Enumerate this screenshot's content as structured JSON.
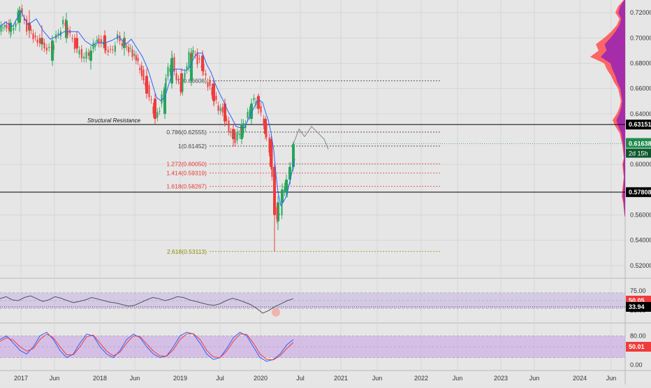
{
  "chart_data": {
    "type": "candlestick",
    "x_labels": [
      "2017",
      "Jun",
      "2018",
      "Jun",
      "2019",
      "Jul",
      "2020",
      "Jul",
      "2021",
      "Jun",
      "2022",
      "Jun",
      "2023",
      "Jun",
      "2024",
      "Jun"
    ],
    "price_axis": {
      "ticks": [
        "0.72000",
        "0.70000",
        "0.68000",
        "0.66000",
        "0.64000",
        "0.60000",
        "0.56000",
        "0.54000",
        "0.52000"
      ],
      "range": [
        0.51,
        0.73
      ]
    },
    "last_price": {
      "value": "0.61638",
      "countdown": "2d 15h",
      "color": "#1e8a4c"
    },
    "levels": [
      {
        "value": "0.63151",
        "label": "Structural Resistance",
        "color": "#000000"
      },
      {
        "value": "0.57808",
        "label": "",
        "color": "#000000"
      }
    ],
    "fib_levels": [
      {
        "label": "0(0.66606)",
        "value": 0.66606,
        "color": "#444444"
      },
      {
        "label": "0.786(0.62555)",
        "value": 0.62555,
        "color": "#444444"
      },
      {
        "label": "1(0.61452)",
        "value": 0.61452,
        "color": "#444444"
      },
      {
        "label": "1.272(0.60050)",
        "value": 0.6005,
        "color": "#e53935"
      },
      {
        "label": "1.414(0.59319)",
        "value": 0.59319,
        "color": "#e53935"
      },
      {
        "label": "1.618(0.58267)",
        "value": 0.58267,
        "color": "#e53935"
      },
      {
        "label": "2.618(0.53113)",
        "value": 0.53113,
        "color": "#8b8b00"
      }
    ],
    "ma_color": "#2962ff",
    "up_color": "#26a65b",
    "down_color": "#ef3b3b",
    "price_path": [
      [
        0,
        0.705
      ],
      [
        8,
        0.712
      ],
      [
        18,
        0.705
      ],
      [
        30,
        0.722
      ],
      [
        40,
        0.708
      ],
      [
        52,
        0.7
      ],
      [
        62,
        0.695
      ],
      [
        72,
        0.69
      ],
      [
        82,
        0.7
      ],
      [
        92,
        0.712
      ],
      [
        102,
        0.702
      ],
      [
        112,
        0.69
      ],
      [
        122,
        0.685
      ],
      [
        132,
        0.69
      ],
      [
        140,
        0.7
      ],
      [
        150,
        0.694
      ],
      [
        160,
        0.688
      ],
      [
        170,
        0.7
      ],
      [
        180,
        0.694
      ],
      [
        188,
        0.69
      ],
      [
        196,
        0.682
      ],
      [
        204,
        0.672
      ],
      [
        212,
        0.66
      ],
      [
        218,
        0.648
      ],
      [
        224,
        0.638
      ],
      [
        230,
        0.645
      ],
      [
        236,
        0.66
      ],
      [
        242,
        0.675
      ],
      [
        248,
        0.682
      ],
      [
        254,
        0.668
      ],
      [
        260,
        0.66
      ],
      [
        266,
        0.672
      ],
      [
        272,
        0.686
      ],
      [
        278,
        0.69
      ],
      [
        284,
        0.682
      ],
      [
        290,
        0.678
      ],
      [
        296,
        0.668
      ],
      [
        302,
        0.66
      ],
      [
        308,
        0.652
      ],
      [
        314,
        0.645
      ],
      [
        320,
        0.64
      ],
      [
        326,
        0.632
      ],
      [
        332,
        0.625
      ],
      [
        338,
        0.62
      ],
      [
        344,
        0.625
      ],
      [
        350,
        0.63
      ],
      [
        356,
        0.64
      ],
      [
        362,
        0.648
      ],
      [
        368,
        0.652
      ],
      [
        372,
        0.645
      ],
      [
        376,
        0.638
      ],
      [
        380,
        0.63
      ],
      [
        384,
        0.624
      ],
      [
        388,
        0.612
      ],
      [
        392,
        0.59
      ],
      [
        395,
        0.565
      ],
      [
        398,
        0.558
      ],
      [
        402,
        0.562
      ],
      [
        406,
        0.575
      ],
      [
        410,
        0.58
      ],
      [
        414,
        0.585
      ],
      [
        418,
        0.6
      ],
      [
        422,
        0.616
      ]
    ],
    "candles": [
      {
        "x": 15,
        "o": 0.705,
        "h": 0.715,
        "l": 0.7,
        "c": 0.712
      },
      {
        "x": 28,
        "o": 0.712,
        "h": 0.725,
        "l": 0.705,
        "c": 0.722
      },
      {
        "x": 42,
        "o": 0.712,
        "h": 0.722,
        "l": 0.7,
        "c": 0.706
      },
      {
        "x": 60,
        "o": 0.7,
        "h": 0.71,
        "l": 0.69,
        "c": 0.695
      },
      {
        "x": 75,
        "o": 0.682,
        "h": 0.702,
        "l": 0.678,
        "c": 0.698
      },
      {
        "x": 95,
        "o": 0.7,
        "h": 0.72,
        "l": 0.696,
        "c": 0.714
      },
      {
        "x": 110,
        "o": 0.7,
        "h": 0.705,
        "l": 0.688,
        "c": 0.692
      },
      {
        "x": 130,
        "o": 0.682,
        "h": 0.694,
        "l": 0.675,
        "c": 0.69
      },
      {
        "x": 150,
        "o": 0.702,
        "h": 0.706,
        "l": 0.688,
        "c": 0.692
      },
      {
        "x": 178,
        "o": 0.692,
        "h": 0.705,
        "l": 0.686,
        "c": 0.7
      },
      {
        "x": 210,
        "o": 0.67,
        "h": 0.676,
        "l": 0.652,
        "c": 0.656
      },
      {
        "x": 222,
        "o": 0.652,
        "h": 0.656,
        "l": 0.632,
        "c": 0.636
      },
      {
        "x": 236,
        "o": 0.64,
        "h": 0.664,
        "l": 0.636,
        "c": 0.66
      },
      {
        "x": 246,
        "o": 0.664,
        "h": 0.69,
        "l": 0.66,
        "c": 0.684
      },
      {
        "x": 260,
        "o": 0.672,
        "h": 0.676,
        "l": 0.656,
        "c": 0.66
      },
      {
        "x": 274,
        "o": 0.666,
        "h": 0.692,
        "l": 0.662,
        "c": 0.688
      },
      {
        "x": 290,
        "o": 0.686,
        "h": 0.69,
        "l": 0.67,
        "c": 0.674
      },
      {
        "x": 306,
        "o": 0.664,
        "h": 0.668,
        "l": 0.646,
        "c": 0.65
      },
      {
        "x": 322,
        "o": 0.648,
        "h": 0.652,
        "l": 0.63,
        "c": 0.634
      },
      {
        "x": 334,
        "o": 0.628,
        "h": 0.632,
        "l": 0.614,
        "c": 0.62
      },
      {
        "x": 346,
        "o": 0.62,
        "h": 0.636,
        "l": 0.616,
        "c": 0.632
      },
      {
        "x": 360,
        "o": 0.636,
        "h": 0.652,
        "l": 0.632,
        "c": 0.648
      },
      {
        "x": 370,
        "o": 0.654,
        "h": 0.656,
        "l": 0.64,
        "c": 0.644
      },
      {
        "x": 380,
        "o": 0.636,
        "h": 0.638,
        "l": 0.62,
        "c": 0.624
      },
      {
        "x": 388,
        "o": 0.62,
        "h": 0.622,
        "l": 0.596,
        "c": 0.598
      },
      {
        "x": 393,
        "o": 0.598,
        "h": 0.6,
        "l": 0.531,
        "c": 0.56
      },
      {
        "x": 398,
        "o": 0.555,
        "h": 0.575,
        "l": 0.548,
        "c": 0.57
      },
      {
        "x": 404,
        "o": 0.57,
        "h": 0.585,
        "l": 0.566,
        "c": 0.58
      },
      {
        "x": 410,
        "o": 0.578,
        "h": 0.592,
        "l": 0.574,
        "c": 0.588
      },
      {
        "x": 415,
        "o": 0.588,
        "h": 0.602,
        "l": 0.584,
        "c": 0.598
      },
      {
        "x": 420,
        "o": 0.598,
        "h": 0.618,
        "l": 0.596,
        "c": 0.616
      }
    ],
    "projection_path": [
      [
        420,
        0.616
      ],
      [
        428,
        0.628
      ],
      [
        436,
        0.622
      ],
      [
        446,
        0.63
      ],
      [
        455,
        0.625
      ],
      [
        464,
        0.62
      ],
      [
        470,
        0.612
      ]
    ],
    "rsi": {
      "axis_ticks": [
        "75.00",
        "25.00"
      ],
      "value_label": "50.05",
      "value_label2": "33.94",
      "band": [
        30,
        70
      ],
      "values": [
        55,
        60,
        52,
        50,
        58,
        62,
        55,
        48,
        52,
        60,
        56,
        50,
        45,
        48,
        52,
        58,
        54,
        50,
        46,
        44,
        40,
        36,
        38,
        45,
        52,
        58,
        55,
        50,
        54,
        60,
        58,
        52,
        48,
        44,
        40,
        38,
        42,
        50,
        56,
        52,
        46,
        40,
        30,
        18,
        25,
        35,
        42,
        50,
        55
      ]
    },
    "stoch": {
      "axis_ticks": [
        "80.00",
        "0.00"
      ],
      "value_label": "50.01",
      "band": [
        20,
        80
      ],
      "k_values": [
        70,
        80,
        60,
        40,
        30,
        50,
        80,
        90,
        70,
        40,
        20,
        30,
        60,
        85,
        80,
        50,
        30,
        20,
        40,
        70,
        85,
        75,
        50,
        30,
        20,
        25,
        50,
        80,
        90,
        85,
        60,
        30,
        15,
        20,
        45,
        75,
        90,
        80,
        50,
        20,
        10,
        15,
        30,
        55,
        70
      ],
      "d_values": [
        65,
        75,
        68,
        50,
        38,
        45,
        70,
        85,
        75,
        50,
        28,
        28,
        50,
        78,
        82,
        60,
        38,
        25,
        35,
        60,
        80,
        78,
        58,
        38,
        25,
        24,
        42,
        70,
        85,
        86,
        70,
        40,
        22,
        20,
        38,
        65,
        85,
        84,
        60,
        30,
        15,
        14,
        25,
        45,
        62
      ]
    }
  }
}
